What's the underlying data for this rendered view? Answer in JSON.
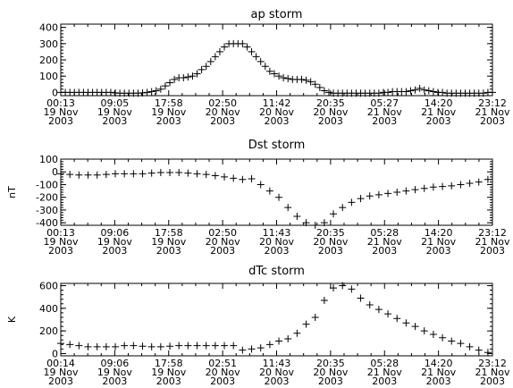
{
  "chart_data": [
    {
      "type": "scatter",
      "title": "ap storm",
      "ylabel": "",
      "ylim": [
        -20,
        420
      ],
      "yticks": [
        0,
        100,
        200,
        300,
        400
      ],
      "x_tick_labels": [
        {
          "time": "00:13",
          "date": "19 Nov",
          "year": "2003"
        },
        {
          "time": "09:05",
          "date": "19 Nov",
          "year": "2003"
        },
        {
          "time": "17:58",
          "date": "19 Nov",
          "year": "2003"
        },
        {
          "time": "02:50",
          "date": "20 Nov",
          "year": "2003"
        },
        {
          "time": "11:42",
          "date": "20 Nov",
          "year": "2003"
        },
        {
          "time": "20:35",
          "date": "20 Nov",
          "year": "2003"
        },
        {
          "time": "05:27",
          "date": "21 Nov",
          "year": "2003"
        },
        {
          "time": "14:20",
          "date": "21 Nov",
          "year": "2003"
        },
        {
          "time": "23:12",
          "date": "21 Nov",
          "year": "2003"
        }
      ],
      "x_hours": [
        0.0,
        0.75,
        1.5,
        2.25,
        3.0,
        3.75,
        4.5,
        5.25,
        6.0,
        6.75,
        7.5,
        8.25,
        9.0,
        9.75,
        10.5,
        11.25,
        12.0,
        12.75,
        13.5,
        14.25,
        15.0,
        15.75,
        16.5,
        17.25,
        18.0,
        18.75,
        19.5,
        20.25,
        21.0,
        21.75,
        22.5,
        23.25,
        24.0,
        24.75,
        25.5,
        26.25,
        27.0,
        27.75,
        28.5,
        29.25,
        30.0,
        30.75,
        31.5,
        32.25,
        33.0,
        33.75,
        34.5,
        35.25,
        36.0,
        36.75,
        37.5,
        38.25,
        39.0,
        39.75,
        40.5,
        41.25,
        42.0,
        42.75,
        43.5,
        44.25,
        45.0,
        45.75,
        46.5,
        47.25,
        48.0,
        48.75,
        49.5,
        50.25,
        51.0,
        51.75,
        52.5,
        53.25,
        54.0,
        54.75,
        55.5,
        56.25,
        57.0,
        57.75,
        58.5,
        59.25,
        60.0,
        60.75,
        61.5,
        62.25,
        63.0,
        63.75,
        64.5,
        65.25,
        66.0,
        66.75,
        67.5,
        68.25,
        69.0,
        69.75,
        70.5,
        71.25
      ],
      "values": [
        0,
        0,
        0,
        0,
        0,
        0,
        0,
        0,
        0,
        0,
        0,
        0,
        -3,
        -5,
        -5,
        -5,
        -5,
        -5,
        -3,
        0,
        5,
        10,
        20,
        40,
        60,
        80,
        90,
        90,
        95,
        100,
        115,
        140,
        160,
        190,
        220,
        250,
        280,
        300,
        300,
        300,
        300,
        280,
        250,
        220,
        190,
        160,
        130,
        115,
        100,
        90,
        85,
        80,
        80,
        80,
        75,
        65,
        50,
        30,
        10,
        0,
        -5,
        -5,
        -5,
        -5,
        -5,
        -5,
        -5,
        -5,
        -5,
        -5,
        -5,
        0,
        0,
        5,
        5,
        5,
        5,
        10,
        15,
        25,
        15,
        10,
        5,
        0,
        0,
        -5,
        -5,
        -5,
        -5,
        -5,
        -5,
        -5,
        -5,
        -5,
        0,
        0
      ]
    },
    {
      "type": "scatter",
      "title": "Dst storm",
      "ylabel": "nT",
      "ylim": [
        -420,
        100
      ],
      "yticks": [
        100,
        0,
        -100,
        -200,
        -300,
        -400
      ],
      "x_tick_labels": [
        {
          "time": "00:13",
          "date": "19 Nov",
          "year": "2003"
        },
        {
          "time": "09:06",
          "date": "19 Nov",
          "year": "2003"
        },
        {
          "time": "17:58",
          "date": "19 Nov",
          "year": "2003"
        },
        {
          "time": "02:50",
          "date": "20 Nov",
          "year": "2003"
        },
        {
          "time": "11:43",
          "date": "20 Nov",
          "year": "2003"
        },
        {
          "time": "20:35",
          "date": "20 Nov",
          "year": "2003"
        },
        {
          "time": "05:28",
          "date": "21 Nov",
          "year": "2003"
        },
        {
          "time": "14:20",
          "date": "21 Nov",
          "year": "2003"
        },
        {
          "time": "23:12",
          "date": "21 Nov",
          "year": "2003"
        }
      ],
      "x_hours": [
        0.0,
        1.5,
        3.0,
        4.5,
        6.0,
        7.5,
        9.0,
        10.5,
        12.0,
        13.5,
        15.0,
        16.5,
        18.0,
        19.5,
        21.0,
        22.5,
        24.0,
        25.5,
        27.0,
        28.5,
        30.0,
        31.5,
        33.0,
        34.5,
        36.0,
        37.5,
        39.0,
        40.5,
        42.0,
        43.5,
        45.0,
        46.5,
        48.0,
        49.5,
        51.0,
        52.5,
        54.0,
        55.5,
        57.0,
        58.5,
        60.0,
        61.5,
        63.0,
        64.5,
        66.0,
        67.5,
        69.0,
        70.5
      ],
      "values": [
        -15,
        -20,
        -25,
        -25,
        -25,
        -20,
        -15,
        -15,
        -15,
        -15,
        -10,
        -5,
        -5,
        -5,
        -10,
        -15,
        -20,
        -30,
        -40,
        -50,
        -60,
        -55,
        -100,
        -150,
        -200,
        -280,
        -350,
        -400,
        -420,
        -400,
        -330,
        -280,
        -240,
        -210,
        -190,
        -180,
        -170,
        -160,
        -150,
        -140,
        -130,
        -120,
        -115,
        -110,
        -100,
        -90,
        -80,
        -60
      ]
    },
    {
      "type": "scatter",
      "title": "dTc storm",
      "ylabel": "K",
      "ylim": [
        -20,
        620
      ],
      "yticks": [
        0,
        200,
        400,
        600
      ],
      "x_tick_labels": [
        {
          "time": "00:14",
          "date": "19 Nov",
          "year": "2003"
        },
        {
          "time": "09:06",
          "date": "19 Nov",
          "year": "2003"
        },
        {
          "time": "17:58",
          "date": "19 Nov",
          "year": "2003"
        },
        {
          "time": "02:51",
          "date": "20 Nov",
          "year": "2003"
        },
        {
          "time": "11:43",
          "date": "20 Nov",
          "year": "2003"
        },
        {
          "time": "20:35",
          "date": "20 Nov",
          "year": "2003"
        },
        {
          "time": "05:28",
          "date": "21 Nov",
          "year": "2003"
        },
        {
          "time": "14:20",
          "date": "21 Nov",
          "year": "2003"
        },
        {
          "time": "23:12",
          "date": "21 Nov",
          "year": "2003"
        }
      ],
      "x_hours": [
        0.0,
        1.5,
        3.0,
        4.5,
        6.0,
        7.5,
        9.0,
        10.5,
        12.0,
        13.5,
        15.0,
        16.5,
        18.0,
        19.5,
        21.0,
        22.5,
        24.0,
        25.5,
        27.0,
        28.5,
        30.0,
        31.5,
        33.0,
        34.5,
        36.0,
        37.5,
        39.0,
        40.5,
        42.0,
        43.5,
        45.0,
        46.5,
        48.0,
        49.5,
        51.0,
        52.5,
        54.0,
        55.5,
        57.0,
        58.5,
        60.0,
        61.5,
        63.0,
        64.5,
        66.0,
        67.5,
        69.0,
        70.5
      ],
      "values": [
        90,
        80,
        70,
        60,
        60,
        60,
        60,
        70,
        70,
        65,
        60,
        60,
        65,
        70,
        70,
        70,
        70,
        70,
        70,
        70,
        30,
        40,
        50,
        80,
        110,
        130,
        180,
        260,
        320,
        470,
        580,
        600,
        570,
        490,
        430,
        390,
        350,
        310,
        270,
        240,
        200,
        170,
        140,
        110,
        90,
        60,
        30,
        10
      ]
    }
  ]
}
